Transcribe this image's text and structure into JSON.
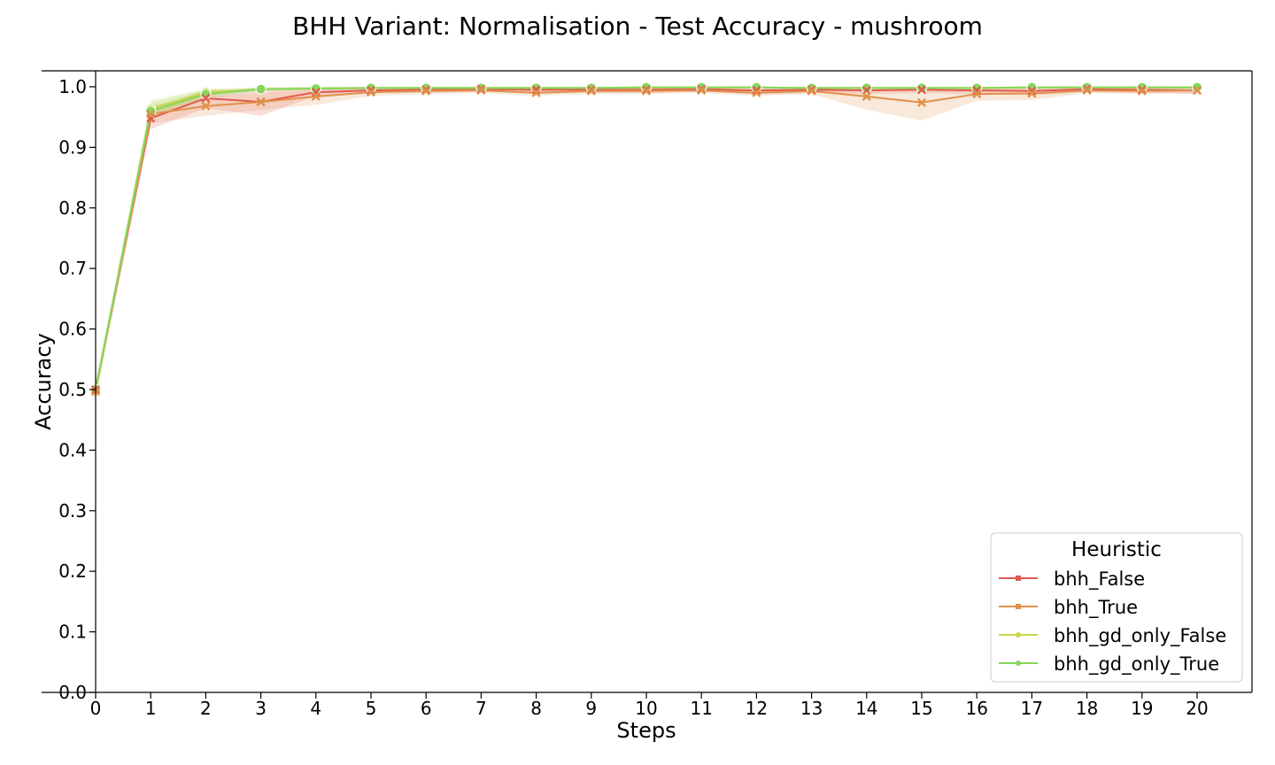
{
  "chart_data": {
    "type": "line",
    "title": "BHH Variant: Normalisation - Test Accuracy - mushroom",
    "xlabel": "Steps",
    "ylabel": "Accuracy",
    "xlim": [
      0,
      20
    ],
    "ylim": [
      0.0,
      1.0
    ],
    "xticks": [
      "0",
      "1",
      "2",
      "3",
      "4",
      "5",
      "6",
      "7",
      "8",
      "9",
      "10",
      "11",
      "12",
      "13",
      "14",
      "15",
      "16",
      "17",
      "18",
      "19",
      "20"
    ],
    "yticks": [
      "0.0",
      "0.1",
      "0.2",
      "0.3",
      "0.4",
      "0.5",
      "0.6",
      "0.7",
      "0.8",
      "0.9",
      "1.0"
    ],
    "grid": false,
    "legend": {
      "title": "Heuristic",
      "placement": "lower-right"
    },
    "x": [
      0,
      1,
      2,
      3,
      4,
      5,
      6,
      7,
      8,
      9,
      10,
      11,
      12,
      13,
      14,
      15,
      16,
      17,
      18,
      19,
      20
    ],
    "series": [
      {
        "name": "bhh_False",
        "color": "#e05a4e",
        "marker": "x",
        "values": [
          0.5,
          0.948,
          0.981,
          0.975,
          0.991,
          0.994,
          0.995,
          0.996,
          0.995,
          0.995,
          0.995,
          0.996,
          0.994,
          0.995,
          0.994,
          0.995,
          0.994,
          0.993,
          0.996,
          0.995,
          0.994
        ],
        "band_low": [
          0.49,
          0.93,
          0.965,
          0.952,
          0.985,
          0.99,
          0.99,
          0.992,
          0.99,
          0.99,
          0.99,
          0.992,
          0.988,
          0.99,
          0.988,
          0.99,
          0.988,
          0.986,
          0.991,
          0.99,
          0.988
        ],
        "band_high": [
          0.51,
          0.965,
          0.995,
          0.995,
          0.998,
          0.998,
          0.999,
          0.999,
          0.999,
          0.999,
          0.999,
          0.999,
          0.999,
          0.999,
          0.999,
          0.999,
          0.999,
          0.999,
          0.999,
          0.999,
          0.999
        ]
      },
      {
        "name": "bhh_True",
        "color": "#e0914a",
        "marker": "x",
        "values": [
          0.497,
          0.955,
          0.968,
          0.975,
          0.984,
          0.991,
          0.993,
          0.994,
          0.99,
          0.993,
          0.993,
          0.994,
          0.99,
          0.993,
          0.984,
          0.974,
          0.988,
          0.989,
          0.994,
          0.993,
          0.994
        ],
        "band_low": [
          0.487,
          0.94,
          0.952,
          0.962,
          0.97,
          0.985,
          0.988,
          0.99,
          0.985,
          0.988,
          0.988,
          0.99,
          0.985,
          0.988,
          0.962,
          0.944,
          0.977,
          0.978,
          0.99,
          0.988,
          0.99
        ],
        "band_high": [
          0.507,
          0.97,
          0.984,
          0.99,
          0.996,
          0.998,
          0.998,
          0.998,
          0.996,
          0.998,
          0.998,
          0.998,
          0.996,
          0.998,
          0.996,
          0.992,
          0.996,
          0.997,
          0.998,
          0.998,
          0.998
        ]
      },
      {
        "name": "bhh_gd_only_False",
        "color": "#c9d84a",
        "marker": "o",
        "values": [
          0.497,
          0.963,
          0.991,
          0.996,
          0.997,
          0.998,
          0.998,
          0.998,
          0.998,
          0.998,
          0.999,
          0.999,
          0.999,
          0.998,
          0.998,
          0.998,
          0.998,
          0.999,
          0.999,
          0.999,
          0.999
        ],
        "band_low": [
          0.487,
          0.95,
          0.984,
          0.993,
          0.995,
          0.996,
          0.996,
          0.996,
          0.996,
          0.996,
          0.997,
          0.997,
          0.997,
          0.996,
          0.996,
          0.996,
          0.996,
          0.997,
          0.997,
          0.997,
          0.997
        ],
        "band_high": [
          0.507,
          0.978,
          0.997,
          0.999,
          1.0,
          1.0,
          1.0,
          1.0,
          1.0,
          1.0,
          1.0,
          1.0,
          1.0,
          1.0,
          1.0,
          1.0,
          1.0,
          1.0,
          1.0,
          1.0,
          1.0
        ]
      },
      {
        "name": "bhh_gd_only_True",
        "color": "#86d65a",
        "marker": "o",
        "values": [
          0.5,
          0.96,
          0.988,
          0.996,
          0.997,
          0.998,
          0.998,
          0.998,
          0.998,
          0.998,
          0.999,
          0.999,
          0.999,
          0.998,
          0.998,
          0.998,
          0.998,
          0.999,
          0.999,
          0.999,
          0.999
        ],
        "band_low": [
          0.49,
          0.948,
          0.981,
          0.993,
          0.995,
          0.996,
          0.996,
          0.996,
          0.996,
          0.996,
          0.997,
          0.997,
          0.997,
          0.996,
          0.996,
          0.996,
          0.996,
          0.997,
          0.997,
          0.997,
          0.997
        ],
        "band_high": [
          0.51,
          0.974,
          0.995,
          0.999,
          1.0,
          1.0,
          1.0,
          1.0,
          1.0,
          1.0,
          1.0,
          1.0,
          1.0,
          1.0,
          1.0,
          1.0,
          1.0,
          1.0,
          1.0,
          1.0,
          1.0
        ]
      }
    ]
  }
}
